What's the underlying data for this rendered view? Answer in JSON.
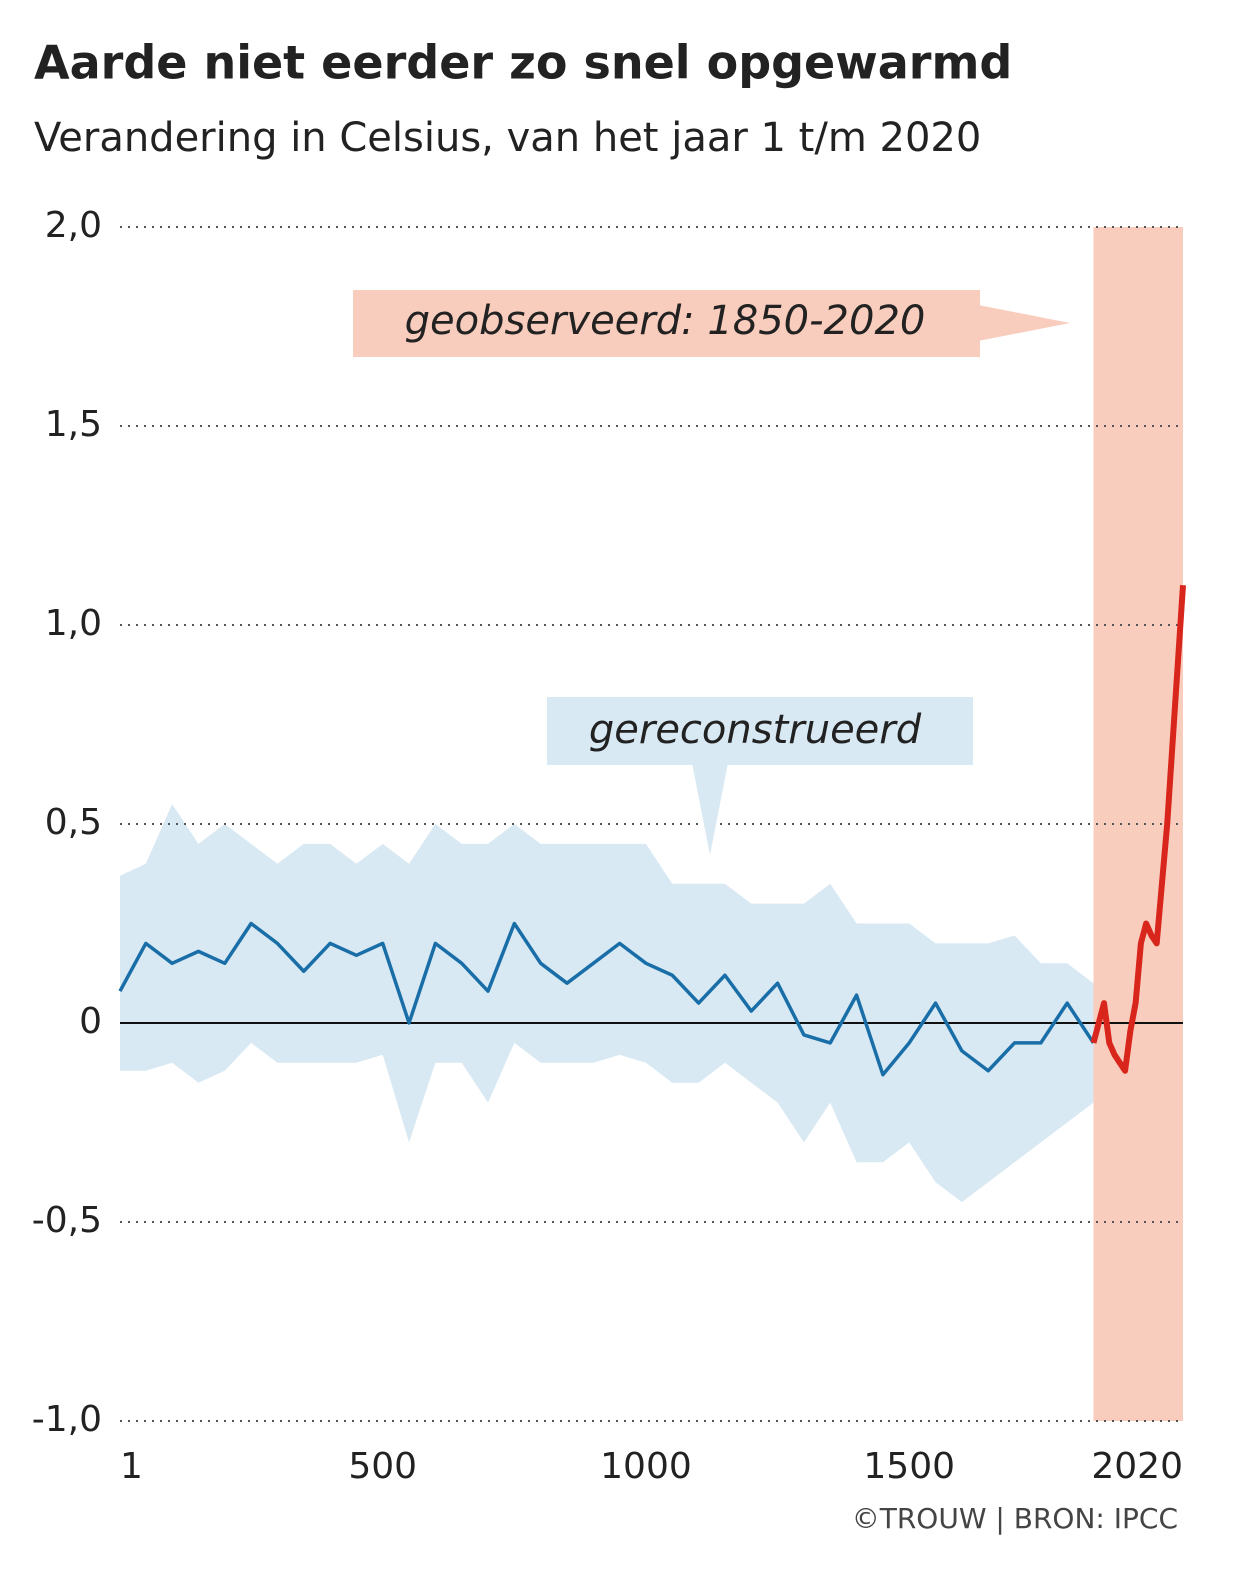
{
  "chart_data": {
    "type": "line",
    "title": "Aarde niet eerder zo snel opgewarmd",
    "subtitle": "Verandering in Celsius, van het jaar 1 t/m 2020",
    "source": "©TROUW | BRON: IPCC",
    "annotations": [
      "geobserveerd: 1850-2020",
      "gereconstrueerd"
    ],
    "highlight_range": [
      1850,
      2020
    ],
    "highlight_color": "#f9cdbd",
    "band_color": "#d8e9f3",
    "xlim": [
      1,
      2020
    ],
    "xticks": [
      1,
      500,
      1000,
      1500,
      2020
    ],
    "ylim": [
      -1,
      2
    ],
    "yticks": [
      {
        "value": -1,
        "label": "-1,0"
      },
      {
        "value": -0.5,
        "label": "-0,5"
      },
      0,
      {
        "value": 0.5,
        "label": "0,5"
      },
      {
        "value": 1,
        "label": "1,0"
      },
      {
        "value": 1.5,
        "label": "1,5"
      },
      {
        "value": 2,
        "label": "2,0"
      }
    ],
    "grid": true,
    "series": [
      {
        "name": "gereconstrueerd",
        "color": "#1a6ea8",
        "x": [
          1,
          50,
          100,
          150,
          200,
          250,
          300,
          350,
          400,
          450,
          500,
          550,
          600,
          650,
          700,
          750,
          800,
          850,
          900,
          950,
          1000,
          1050,
          1100,
          1150,
          1200,
          1250,
          1300,
          1350,
          1400,
          1450,
          1500,
          1550,
          1600,
          1650,
          1700,
          1750,
          1800,
          1850
        ],
        "values": [
          0.08,
          0.2,
          0.15,
          0.18,
          0.15,
          0.25,
          0.2,
          0.13,
          0.2,
          0.17,
          0.2,
          0.0,
          0.2,
          0.15,
          0.08,
          0.25,
          0.15,
          0.1,
          0.15,
          0.2,
          0.15,
          0.12,
          0.05,
          0.12,
          0.03,
          0.1,
          -0.03,
          -0.05,
          0.07,
          -0.13,
          -0.05,
          0.05,
          -0.07,
          -0.12,
          -0.05,
          -0.05,
          0.05,
          -0.05
        ],
        "upper": [
          0.37,
          0.4,
          0.55,
          0.45,
          0.5,
          0.45,
          0.4,
          0.45,
          0.45,
          0.4,
          0.45,
          0.4,
          0.5,
          0.45,
          0.45,
          0.5,
          0.45,
          0.45,
          0.45,
          0.45,
          0.45,
          0.35,
          0.35,
          0.35,
          0.3,
          0.3,
          0.3,
          0.35,
          0.25,
          0.25,
          0.25,
          0.2,
          0.2,
          0.2,
          0.22,
          0.15,
          0.15,
          0.1
        ],
        "lower": [
          -0.12,
          -0.12,
          -0.1,
          -0.15,
          -0.12,
          -0.05,
          -0.1,
          -0.1,
          -0.1,
          -0.1,
          -0.08,
          -0.3,
          -0.1,
          -0.1,
          -0.2,
          -0.05,
          -0.1,
          -0.1,
          -0.1,
          -0.08,
          -0.1,
          -0.15,
          -0.15,
          -0.1,
          -0.15,
          -0.2,
          -0.3,
          -0.2,
          -0.35,
          -0.35,
          -0.3,
          -0.4,
          -0.45,
          -0.4,
          -0.35,
          -0.3,
          -0.25,
          -0.2
        ]
      },
      {
        "name": "geobserveerd",
        "color": "#d9261c",
        "x": [
          1850,
          1860,
          1870,
          1880,
          1890,
          1900,
          1910,
          1920,
          1930,
          1940,
          1950,
          1960,
          1970,
          1980,
          1990,
          2000,
          2010,
          2020
        ],
        "values": [
          -0.05,
          0.0,
          0.05,
          -0.05,
          -0.08,
          -0.1,
          -0.12,
          -0.02,
          0.05,
          0.2,
          0.25,
          0.22,
          0.2,
          0.35,
          0.5,
          0.7,
          0.9,
          1.1
        ]
      }
    ]
  }
}
